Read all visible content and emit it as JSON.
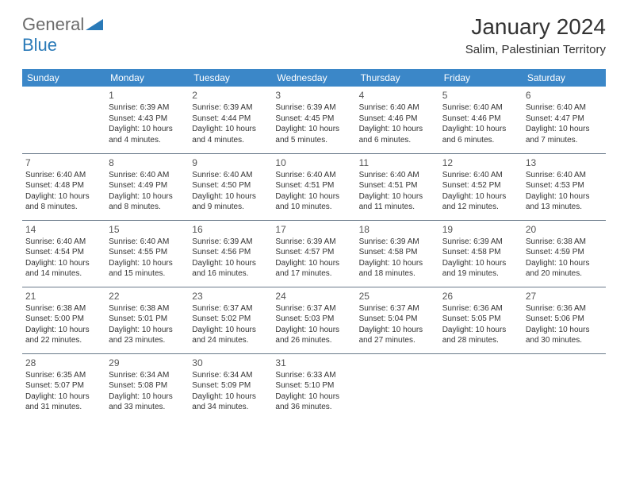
{
  "logo": {
    "word1": "General",
    "word2": "Blue",
    "word1_color": "#6b6b6b",
    "word2_color": "#2a7ab8",
    "triangle_color": "#2a7ab8"
  },
  "title": {
    "month": "January 2024",
    "location": "Salim, Palestinian Territory"
  },
  "colors": {
    "header_bg": "#3b87c8",
    "header_text": "#ffffff",
    "row_border": "#6a7a8a",
    "body_text": "#333333",
    "background": "#ffffff"
  },
  "day_headers": [
    "Sunday",
    "Monday",
    "Tuesday",
    "Wednesday",
    "Thursday",
    "Friday",
    "Saturday"
  ],
  "weeks": [
    [
      {
        "num": "",
        "text": ""
      },
      {
        "num": "1",
        "text": "Sunrise: 6:39 AM\nSunset: 4:43 PM\nDaylight: 10 hours and 4 minutes."
      },
      {
        "num": "2",
        "text": "Sunrise: 6:39 AM\nSunset: 4:44 PM\nDaylight: 10 hours and 4 minutes."
      },
      {
        "num": "3",
        "text": "Sunrise: 6:39 AM\nSunset: 4:45 PM\nDaylight: 10 hours and 5 minutes."
      },
      {
        "num": "4",
        "text": "Sunrise: 6:40 AM\nSunset: 4:46 PM\nDaylight: 10 hours and 6 minutes."
      },
      {
        "num": "5",
        "text": "Sunrise: 6:40 AM\nSunset: 4:46 PM\nDaylight: 10 hours and 6 minutes."
      },
      {
        "num": "6",
        "text": "Sunrise: 6:40 AM\nSunset: 4:47 PM\nDaylight: 10 hours and 7 minutes."
      }
    ],
    [
      {
        "num": "7",
        "text": "Sunrise: 6:40 AM\nSunset: 4:48 PM\nDaylight: 10 hours and 8 minutes."
      },
      {
        "num": "8",
        "text": "Sunrise: 6:40 AM\nSunset: 4:49 PM\nDaylight: 10 hours and 8 minutes."
      },
      {
        "num": "9",
        "text": "Sunrise: 6:40 AM\nSunset: 4:50 PM\nDaylight: 10 hours and 9 minutes."
      },
      {
        "num": "10",
        "text": "Sunrise: 6:40 AM\nSunset: 4:51 PM\nDaylight: 10 hours and 10 minutes."
      },
      {
        "num": "11",
        "text": "Sunrise: 6:40 AM\nSunset: 4:51 PM\nDaylight: 10 hours and 11 minutes."
      },
      {
        "num": "12",
        "text": "Sunrise: 6:40 AM\nSunset: 4:52 PM\nDaylight: 10 hours and 12 minutes."
      },
      {
        "num": "13",
        "text": "Sunrise: 6:40 AM\nSunset: 4:53 PM\nDaylight: 10 hours and 13 minutes."
      }
    ],
    [
      {
        "num": "14",
        "text": "Sunrise: 6:40 AM\nSunset: 4:54 PM\nDaylight: 10 hours and 14 minutes."
      },
      {
        "num": "15",
        "text": "Sunrise: 6:40 AM\nSunset: 4:55 PM\nDaylight: 10 hours and 15 minutes."
      },
      {
        "num": "16",
        "text": "Sunrise: 6:39 AM\nSunset: 4:56 PM\nDaylight: 10 hours and 16 minutes."
      },
      {
        "num": "17",
        "text": "Sunrise: 6:39 AM\nSunset: 4:57 PM\nDaylight: 10 hours and 17 minutes."
      },
      {
        "num": "18",
        "text": "Sunrise: 6:39 AM\nSunset: 4:58 PM\nDaylight: 10 hours and 18 minutes."
      },
      {
        "num": "19",
        "text": "Sunrise: 6:39 AM\nSunset: 4:58 PM\nDaylight: 10 hours and 19 minutes."
      },
      {
        "num": "20",
        "text": "Sunrise: 6:38 AM\nSunset: 4:59 PM\nDaylight: 10 hours and 20 minutes."
      }
    ],
    [
      {
        "num": "21",
        "text": "Sunrise: 6:38 AM\nSunset: 5:00 PM\nDaylight: 10 hours and 22 minutes."
      },
      {
        "num": "22",
        "text": "Sunrise: 6:38 AM\nSunset: 5:01 PM\nDaylight: 10 hours and 23 minutes."
      },
      {
        "num": "23",
        "text": "Sunrise: 6:37 AM\nSunset: 5:02 PM\nDaylight: 10 hours and 24 minutes."
      },
      {
        "num": "24",
        "text": "Sunrise: 6:37 AM\nSunset: 5:03 PM\nDaylight: 10 hours and 26 minutes."
      },
      {
        "num": "25",
        "text": "Sunrise: 6:37 AM\nSunset: 5:04 PM\nDaylight: 10 hours and 27 minutes."
      },
      {
        "num": "26",
        "text": "Sunrise: 6:36 AM\nSunset: 5:05 PM\nDaylight: 10 hours and 28 minutes."
      },
      {
        "num": "27",
        "text": "Sunrise: 6:36 AM\nSunset: 5:06 PM\nDaylight: 10 hours and 30 minutes."
      }
    ],
    [
      {
        "num": "28",
        "text": "Sunrise: 6:35 AM\nSunset: 5:07 PM\nDaylight: 10 hours and 31 minutes."
      },
      {
        "num": "29",
        "text": "Sunrise: 6:34 AM\nSunset: 5:08 PM\nDaylight: 10 hours and 33 minutes."
      },
      {
        "num": "30",
        "text": "Sunrise: 6:34 AM\nSunset: 5:09 PM\nDaylight: 10 hours and 34 minutes."
      },
      {
        "num": "31",
        "text": "Sunrise: 6:33 AM\nSunset: 5:10 PM\nDaylight: 10 hours and 36 minutes."
      },
      {
        "num": "",
        "text": ""
      },
      {
        "num": "",
        "text": ""
      },
      {
        "num": "",
        "text": ""
      }
    ]
  ]
}
